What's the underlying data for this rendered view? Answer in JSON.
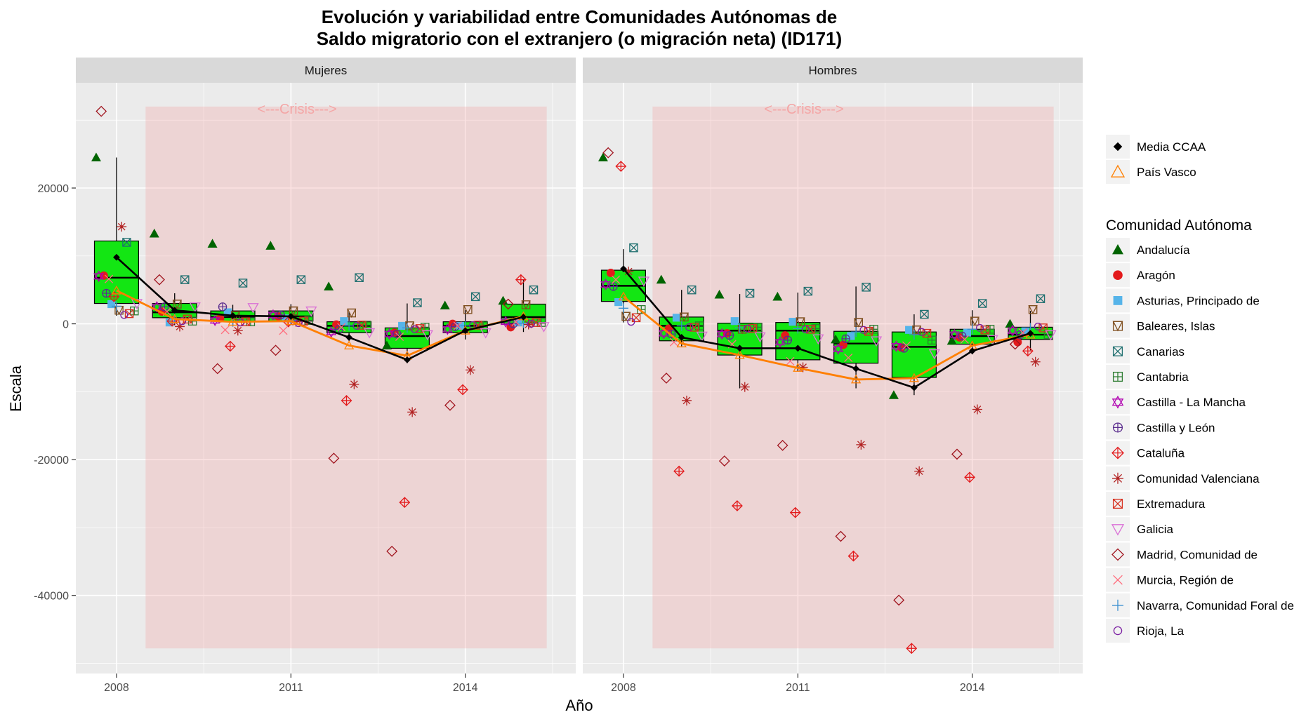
{
  "chart_data": {
    "type": "boxplot",
    "title_line1": "Evolución y variabilidad entre Comunidades Autónomas de",
    "title_line2": "Saldo migratorio con el extranjero (o migración neta) (ID171)",
    "xlabel": "Año",
    "ylabel": "Escala",
    "ylim": [
      -51500,
      35500
    ],
    "xlim": [
      2007.3,
      2015.9
    ],
    "y_ticks": [
      20000,
      0,
      -20000,
      -40000
    ],
    "y_tick_labels": [
      "20000",
      "0",
      "-20000",
      "-40000"
    ],
    "x_ticks": [
      2008,
      2011,
      2014
    ],
    "x_tick_labels": [
      "2008",
      "2011",
      "2014"
    ],
    "years": [
      2008,
      2009,
      2010,
      2011,
      2012,
      2013,
      2014,
      2015
    ],
    "crisis": {
      "label": "<---Crisis--->",
      "x_from": 2008.5,
      "x_to": 2015.4,
      "y_from": -47800,
      "y_to": 32000,
      "color": "#f4a6a6"
    },
    "box_color": "#13e613",
    "mean_color": "#000000",
    "pais_vasco_color": "#ff7f00",
    "panels": [
      {
        "name": "Mujeres",
        "boxes": [
          {
            "year": 2008,
            "q1": 3000,
            "median": 6800,
            "q3": 12200,
            "lo": 1200,
            "hi": 24500
          },
          {
            "year": 2009,
            "q1": 900,
            "median": 1700,
            "q3": 3000,
            "lo": -200,
            "hi": 4500
          },
          {
            "year": 2010,
            "q1": 400,
            "median": 1000,
            "q3": 1900,
            "lo": -400,
            "hi": 2800
          },
          {
            "year": 2011,
            "q1": 400,
            "median": 1100,
            "q3": 1900,
            "lo": -200,
            "hi": 2900
          },
          {
            "year": 2012,
            "q1": -1300,
            "median": -300,
            "q3": 300,
            "lo": -2500,
            "hi": 1800
          },
          {
            "year": 2013,
            "q1": -3600,
            "median": -1800,
            "q3": -600,
            "lo": -5800,
            "hi": 3000
          },
          {
            "year": 2014,
            "q1": -1300,
            "median": -300,
            "q3": 300,
            "lo": -2300,
            "hi": 2000
          },
          {
            "year": 2015,
            "q1": 100,
            "median": 1000,
            "q3": 2900,
            "lo": -1200,
            "hi": 6500
          }
        ],
        "mean": [
          9800,
          2000,
          1200,
          1100,
          -2000,
          -5300,
          -1000,
          1000
        ],
        "pais_vasco": [
          4900,
          700,
          300,
          400,
          -3200,
          -4700,
          -1000,
          1100
        ],
        "points": [
          {
            "c": "Andalucía",
            "y": [
              24500,
              13300,
              11800,
              11500,
              5500,
              -3200,
              2700,
              3400
            ]
          },
          {
            "c": "Aragón",
            "y": [
              7100,
              1800,
              800,
              1100,
              -100,
              -1300,
              0,
              -500
            ]
          },
          {
            "c": "Asturias, Principado de",
            "y": [
              2900,
              200,
              1700,
              800,
              400,
              -300,
              -300,
              200
            ]
          },
          {
            "c": "Baleares, Islas",
            "y": [
              2000,
              2900,
              1200,
              1900,
              1600,
              -300,
              2100,
              2800
            ]
          },
          {
            "c": "Canarias",
            "y": [
              12000,
              6500,
              6000,
              6500,
              6800,
              3100,
              4000,
              5000
            ]
          },
          {
            "c": "Cantabria",
            "y": [
              1900,
              400,
              300,
              500,
              -200,
              -500,
              -200,
              200
            ]
          },
          {
            "c": "Castilla - La Mancha",
            "y": [
              7000,
              2500,
              500,
              1300,
              -1200,
              -1500,
              -800,
              300
            ]
          },
          {
            "c": "Castilla y León",
            "y": [
              4500,
              2500,
              2500,
              1300,
              -800,
              -1500,
              -400,
              0
            ]
          },
          {
            "c": "Cataluña",
            "y": [
              4000,
              400,
              -3300,
              300,
              -11300,
              -26300,
              -9700,
              6500
            ]
          },
          {
            "c": "Comunidad Valenciana",
            "y": [
              14300,
              -400,
              -1000,
              300,
              -8900,
              -13000,
              -6800,
              -100
            ]
          },
          {
            "c": "Extremadura",
            "y": [
              1500,
              700,
              300,
              400,
              -200,
              -700,
              -200,
              200
            ]
          },
          {
            "c": "Galicia",
            "y": [
              3000,
              2500,
              2400,
              1900,
              -1300,
              -1600,
              -1300,
              -400
            ]
          },
          {
            "c": "Madrid, Comunidad de",
            "y": [
              31300,
              6500,
              -6600,
              -3900,
              -19800,
              -33500,
              -12000,
              2900
            ]
          },
          {
            "c": "Murcia, Región de",
            "y": [
              6600,
              1800,
              -900,
              -1000,
              -500,
              -1900,
              -300,
              300
            ]
          },
          {
            "c": "Navarra, Comunidad Foral de",
            "y": [
              2600,
              800,
              300,
              500,
              -300,
              -600,
              -300,
              100
            ]
          },
          {
            "c": "Rioja, La",
            "y": [
              1300,
              400,
              200,
              100,
              -300,
              -800,
              -200,
              0
            ]
          }
        ]
      },
      {
        "name": "Hombres",
        "boxes": [
          {
            "year": 2008,
            "q1": 3300,
            "median": 5600,
            "q3": 7900,
            "lo": 200,
            "hi": 11000
          },
          {
            "year": 2009,
            "q1": -2500,
            "median": -300,
            "q3": 1000,
            "lo": -3300,
            "hi": 5000
          },
          {
            "year": 2010,
            "q1": -4600,
            "median": -1000,
            "q3": 100,
            "lo": -9500,
            "hi": 4400
          },
          {
            "year": 2011,
            "q1": -5300,
            "median": -1000,
            "q3": 200,
            "lo": -7000,
            "hi": 4600
          },
          {
            "year": 2012,
            "q1": -5800,
            "median": -2900,
            "q3": -1100,
            "lo": -9500,
            "hi": 5500
          },
          {
            "year": 2013,
            "q1": -7900,
            "median": -3400,
            "q3": -1200,
            "lo": -10500,
            "hi": 1400
          },
          {
            "year": 2014,
            "q1": -3000,
            "median": -1800,
            "q3": -800,
            "lo": -4500,
            "hi": 2000
          },
          {
            "year": 2015,
            "q1": -2300,
            "median": -1600,
            "q3": -500,
            "lo": -3900,
            "hi": 1900
          }
        ],
        "mean": [
          8100,
          -2000,
          -3600,
          -3600,
          -6600,
          -9400,
          -4000,
          -1400
        ],
        "pais_vasco": [
          4000,
          -2900,
          -4600,
          -6500,
          -8200,
          -8000,
          -3200,
          -1600
        ],
        "points": [
          {
            "c": "Andalucía",
            "y": [
              24500,
              6500,
              4300,
              4000,
              -2300,
              -10500,
              -2500,
              0
            ]
          },
          {
            "c": "Aragón",
            "y": [
              7500,
              -700,
              -1400,
              -1700,
              -3100,
              -3500,
              -2000,
              -2700
            ]
          },
          {
            "c": "Asturias, Principado de",
            "y": [
              3200,
              900,
              400,
              300,
              -1800,
              -900,
              -1300,
              -1100
            ]
          },
          {
            "c": "Baleares, Islas",
            "y": [
              1100,
              1000,
              -800,
              300,
              200,
              -900,
              400,
              2100
            ]
          },
          {
            "c": "Canarias",
            "y": [
              11200,
              5000,
              4500,
              4800,
              5400,
              1400,
              3000,
              3700
            ]
          },
          {
            "c": "Cantabria",
            "y": [
              2100,
              -300,
              -500,
              -700,
              -800,
              -2400,
              -800,
              -1600
            ]
          },
          {
            "c": "Castilla - La Mancha",
            "y": [
              5800,
              -1400,
              -1500,
              -2700,
              -3700,
              -3300,
              -1600,
              -1000
            ]
          },
          {
            "c": "Castilla y León",
            "y": [
              5500,
              -1500,
              -1700,
              -2400,
              -2200,
              -3600,
              -1800,
              -1600
            ]
          },
          {
            "c": "Cataluña",
            "y": [
              23200,
              -21700,
              -26800,
              -27800,
              -34200,
              -47800,
              -22600,
              -4000
            ]
          },
          {
            "c": "Comunidad Valenciana",
            "y": [
              7700,
              -11300,
              -9300,
              -6400,
              -17800,
              -21700,
              -12600,
              -5600
            ]
          },
          {
            "c": "Extremadura",
            "y": [
              900,
              -500,
              -700,
              -800,
              -1100,
              -1400,
              -900,
              -600
            ]
          },
          {
            "c": "Galicia",
            "y": [
              6300,
              -1800,
              -1900,
              -2200,
              -2500,
              -4400,
              -2300,
              -1600
            ]
          },
          {
            "c": "Madrid, Comunidad de",
            "y": [
              25200,
              -8000,
              -20200,
              -17900,
              -31300,
              -40700,
              -19200,
              -3000
            ]
          },
          {
            "c": "Murcia, Región de",
            "y": [
              6500,
              -2700,
              -3000,
              -5500,
              -5000,
              -3200,
              -2300,
              -1300
            ]
          },
          {
            "c": "Navarra, Comunidad Foral de",
            "y": [
              2300,
              -300,
              -600,
              -700,
              -1200,
              -1600,
              -800,
              -600
            ]
          },
          {
            "c": "Rioja, La",
            "y": [
              300,
              -500,
              -700,
              -800,
              -900,
              -1200,
              -600,
              -400
            ]
          }
        ]
      }
    ],
    "legend1": [
      {
        "label": "Media CCAA",
        "shape": "diamond",
        "color": "#000000"
      },
      {
        "label": "País Vasco",
        "shape": "triangle-open",
        "color": "#ff7f00"
      }
    ],
    "legend_title": "Comunidad Autónoma",
    "legend": [
      {
        "label": "Andalucía",
        "shape": "triangle",
        "color": "#006400"
      },
      {
        "label": "Aragón",
        "shape": "circle",
        "color": "#e31a1c"
      },
      {
        "label": "Asturias, Principado de",
        "shape": "square",
        "color": "#56b4e9"
      },
      {
        "label": "Baleares, Islas",
        "shape": "square-triangle",
        "color": "#7f4f1f"
      },
      {
        "label": "Canarias",
        "shape": "square-x",
        "color": "#1f6f6f"
      },
      {
        "label": "Cantabria",
        "shape": "square-plus",
        "color": "#2e7d32"
      },
      {
        "label": "Castilla - La Mancha",
        "shape": "star-david",
        "color": "#b000b0"
      },
      {
        "label": "Castilla y León",
        "shape": "circle-plus",
        "color": "#5b2d8e"
      },
      {
        "label": "Cataluña",
        "shape": "diamond-plus",
        "color": "#e31a1c"
      },
      {
        "label": "Comunidad Valenciana",
        "shape": "asterisk",
        "color": "#b22222"
      },
      {
        "label": "Extremadura",
        "shape": "square-x",
        "color": "#d7301f"
      },
      {
        "label": "Galicia",
        "shape": "triangle-down",
        "color": "#da70d6"
      },
      {
        "label": "Madrid, Comunidad de",
        "shape": "diamond-open",
        "color": "#a0141e"
      },
      {
        "label": "Murcia, Región de",
        "shape": "x",
        "color": "#ff6f7f"
      },
      {
        "label": "Navarra, Comunidad Foral de",
        "shape": "plus",
        "color": "#3a8fd0"
      },
      {
        "label": "Rioja, La",
        "shape": "circle-open",
        "color": "#7b1fa2"
      }
    ]
  }
}
